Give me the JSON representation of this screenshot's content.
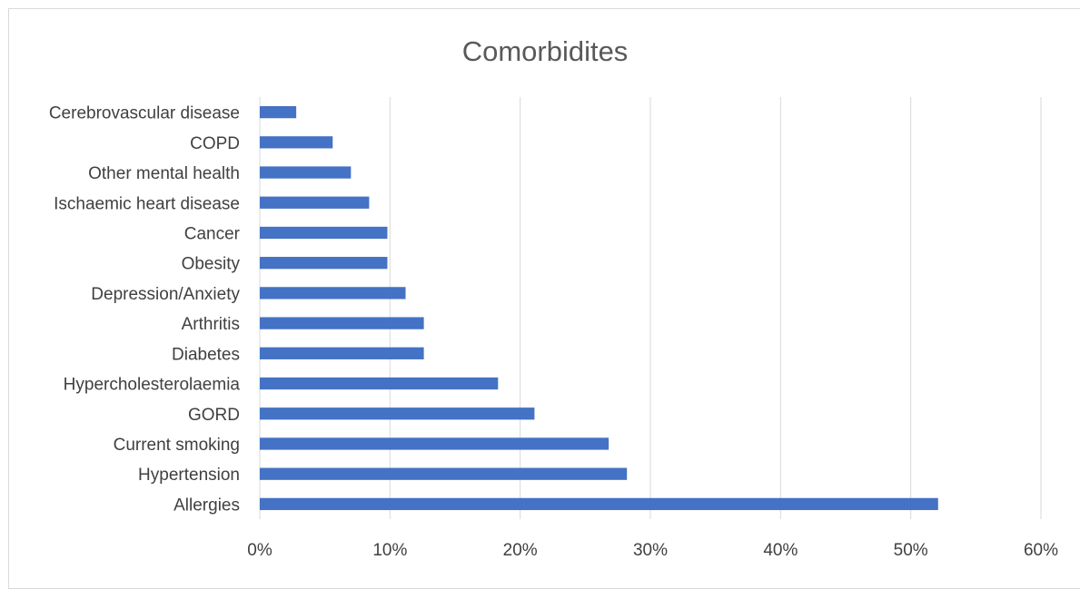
{
  "chart_data": {
    "type": "bar",
    "orientation": "horizontal",
    "title": "Comorbidites",
    "xlabel": "",
    "ylabel": "",
    "categories": [
      "Cerebrovascular disease",
      "COPD",
      "Other mental health",
      "Ischaemic heart disease",
      "Cancer",
      "Obesity",
      "Depression/Anxiety",
      "Arthritis",
      "Diabetes",
      "Hypercholesterolaemia",
      "GORD",
      "Current smoking",
      "Hypertension",
      "Allergies"
    ],
    "values": [
      2.8,
      5.6,
      7.0,
      8.4,
      9.8,
      9.8,
      11.2,
      12.6,
      12.6,
      18.3,
      21.1,
      26.8,
      28.2,
      52.1
    ],
    "xlim": [
      0,
      60
    ],
    "x_ticks": [
      0,
      10,
      20,
      30,
      40,
      50,
      60
    ],
    "x_tick_labels": [
      "0%",
      "10%",
      "20%",
      "30%",
      "40%",
      "50%",
      "60%"
    ],
    "grid": true,
    "legend": "none",
    "bar_color": "#4472c4",
    "grid_color": "#d9d9d9"
  }
}
